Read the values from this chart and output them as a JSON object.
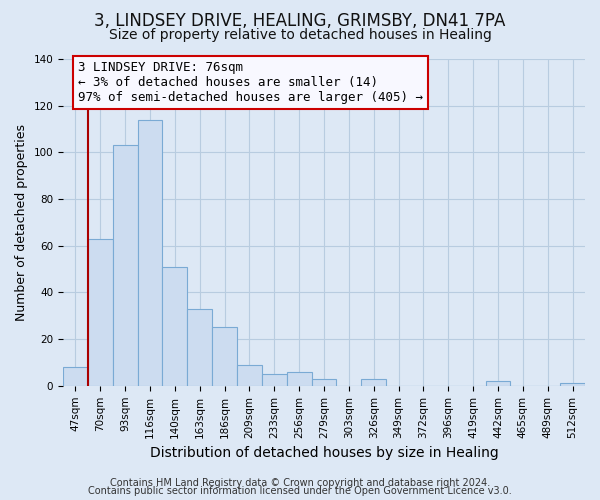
{
  "title": "3, LINDSEY DRIVE, HEALING, GRIMSBY, DN41 7PA",
  "subtitle": "Size of property relative to detached houses in Healing",
  "xlabel": "Distribution of detached houses by size in Healing",
  "ylabel": "Number of detached properties",
  "bar_labels": [
    "47sqm",
    "70sqm",
    "93sqm",
    "116sqm",
    "140sqm",
    "163sqm",
    "186sqm",
    "209sqm",
    "233sqm",
    "256sqm",
    "279sqm",
    "303sqm",
    "326sqm",
    "349sqm",
    "372sqm",
    "396sqm",
    "419sqm",
    "442sqm",
    "465sqm",
    "489sqm",
    "512sqm"
  ],
  "bar_heights": [
    8,
    63,
    103,
    114,
    51,
    33,
    25,
    9,
    5,
    6,
    3,
    0,
    3,
    0,
    0,
    0,
    0,
    2,
    0,
    0,
    1
  ],
  "bar_facecolor": "#ccdcf0",
  "bar_edgecolor": "#7aaad4",
  "vline_color": "#aa0000",
  "vline_x_index": 1,
  "annotation_text": "3 LINDSEY DRIVE: 76sqm\n← 3% of detached houses are smaller (14)\n97% of semi-detached houses are larger (405) →",
  "annotation_box_edgecolor": "#cc0000",
  "annotation_box_facecolor": "#f8f8ff",
  "ylim": [
    0,
    140
  ],
  "yticks": [
    0,
    20,
    40,
    60,
    80,
    100,
    120,
    140
  ],
  "footer_line1": "Contains HM Land Registry data © Crown copyright and database right 2024.",
  "footer_line2": "Contains public sector information licensed under the Open Government Licence v3.0.",
  "background_color": "#dde8f5",
  "plot_bg_color": "#dde8f5",
  "grid_color": "#b8cce0",
  "title_fontsize": 12,
  "subtitle_fontsize": 10,
  "xlabel_fontsize": 10,
  "ylabel_fontsize": 9,
  "tick_fontsize": 7.5,
  "annotation_fontsize": 9,
  "footer_fontsize": 7
}
